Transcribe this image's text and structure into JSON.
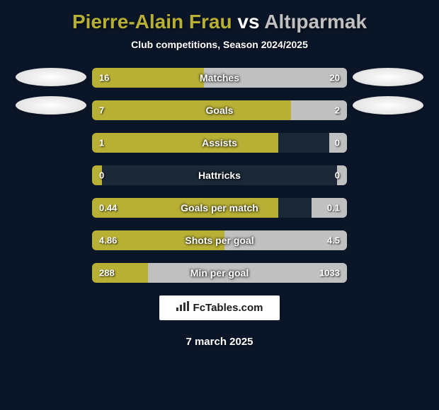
{
  "title": {
    "player1": "Pierre-Alain Frau",
    "vs": "vs",
    "player2": "Altıparmak",
    "player1_color": "#b8b035",
    "vs_color": "#ffffff",
    "player2_color": "#c0c0c0",
    "fontsize": 28
  },
  "subtitle": "Club competitions, Season 2024/2025",
  "background_color": "#0a1628",
  "bar_colors": {
    "left": "#b8b035",
    "right": "#c0c0c0",
    "empty": "#1a2838"
  },
  "bars": [
    {
      "label": "Matches",
      "left_value": "16",
      "right_value": "20",
      "left_pct": 44,
      "right_pct": 56
    },
    {
      "label": "Goals",
      "left_value": "7",
      "right_value": "2",
      "left_pct": 78,
      "right_pct": 22
    },
    {
      "label": "Assists",
      "left_value": "1",
      "right_value": "0",
      "left_pct": 73,
      "right_pct": 7
    },
    {
      "label": "Hattricks",
      "left_value": "0",
      "right_value": "0",
      "left_pct": 4,
      "right_pct": 4
    },
    {
      "label": "Goals per match",
      "left_value": "0.44",
      "right_value": "0.1",
      "left_pct": 73,
      "right_pct": 14
    },
    {
      "label": "Shots per goal",
      "left_value": "4.86",
      "right_value": "4.5",
      "left_pct": 52,
      "right_pct": 48
    },
    {
      "label": "Min per goal",
      "left_value": "288",
      "right_value": "1033",
      "left_pct": 22,
      "right_pct": 78
    }
  ],
  "watermark": {
    "icon": "📊",
    "text": "FcTables.com"
  },
  "date": "7 march 2025",
  "avatar": {
    "width": 100,
    "height": 26
  }
}
